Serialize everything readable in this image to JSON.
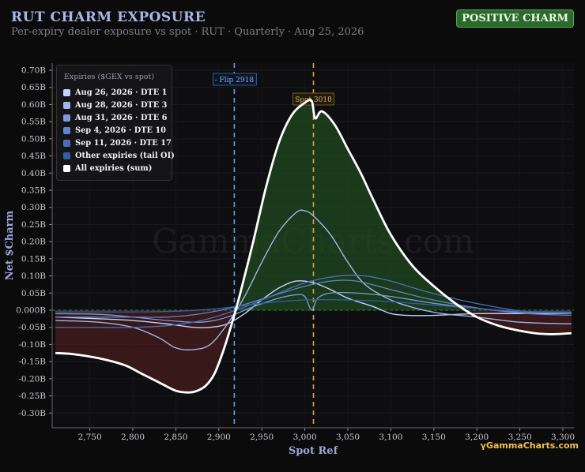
{
  "header": {
    "title": "RUT CHARM EXPOSURE",
    "subtitle": "Per-expiry dealer exposure vs spot · RUT · Quarterly · Aug 25, 2026",
    "badge": "POSITIVE CHARM"
  },
  "brand": "GammaCharts.com",
  "watermark": "GammaCharts.com",
  "colors": {
    "background": "#0b0b0c",
    "positive_fill": "#1f4a1f",
    "negative_fill": "#4a1c1c",
    "flip_line": "#5aa0e8",
    "spot_line": "#d9a44a",
    "badge_bg": "#2c6a2c"
  },
  "chart_data": {
    "type": "line",
    "xlabel": "Spot Ref",
    "ylabel": "Net $Charm",
    "xlim": [
      2710,
      3310
    ],
    "ylim": [
      -0.35,
      0.72
    ],
    "x_ticks": [
      2750,
      2800,
      2850,
      2900,
      2950,
      3000,
      3050,
      3100,
      3150,
      3200,
      3250,
      3300
    ],
    "x_tick_labels": [
      "2,750",
      "2,800",
      "2,850",
      "2,900",
      "2,950",
      "3,000",
      "3,050",
      "3,100",
      "3,150",
      "3,200",
      "3,250",
      "3,300"
    ],
    "y_ticks": [
      0.7,
      0.65,
      0.6,
      0.55,
      0.5,
      0.45,
      0.4,
      0.35,
      0.3,
      0.25,
      0.2,
      0.15,
      0.1,
      0.05,
      0,
      -0.05,
      -0.1,
      -0.15,
      -0.2,
      -0.25,
      -0.3
    ],
    "y_tick_labels": [
      "0.70B",
      "0.65B",
      "0.60B",
      "0.55B",
      "0.50B",
      "0.45B",
      "0.40B",
      "0.35B",
      "0.30B",
      "0.25B",
      "0.20B",
      "0.15B",
      "0.10B",
      "0.05B",
      "0.000B",
      "-0.05B",
      "-0.10B",
      "-0.15B",
      "-0.20B",
      "-0.25B",
      "-0.30B"
    ],
    "grid": true,
    "legend_title": "Expiries ($GEX vs spot)",
    "legend_position": "top-left",
    "annotations": {
      "flip": {
        "x": 2918,
        "label": "- Flip 2918"
      },
      "spot": {
        "x": 3010,
        "label": "Spot 3010"
      }
    },
    "series": [
      {
        "name": "Aug 26, 2026 · DTE 1",
        "color": "#c2d4ff",
        "width": 1.4,
        "x": [
          2710,
          2760,
          2800,
          2840,
          2870,
          2890,
          2910,
          2930,
          2950,
          2970,
          2990,
          3010,
          3030,
          3050,
          3080,
          3100,
          3120,
          3150,
          3200,
          3250,
          3310
        ],
        "y": [
          -0.02,
          -0.025,
          -0.03,
          -0.04,
          -0.05,
          -0.05,
          -0.04,
          -0.01,
          0.03,
          0.065,
          0.085,
          0.08,
          0.06,
          0.035,
          0.01,
          -0.01,
          -0.015,
          -0.015,
          -0.01,
          -0.01,
          -0.01
        ]
      },
      {
        "name": "Aug 28, 2026 · DTE 3",
        "color": "#9fb6ea",
        "width": 1.4,
        "x": [
          2710,
          2760,
          2800,
          2830,
          2850,
          2870,
          2890,
          2910,
          2930,
          2950,
          2970,
          2990,
          3000,
          3010,
          3030,
          3050,
          3070,
          3100,
          3130,
          3160,
          3200,
          3250,
          3310
        ],
        "y": [
          -0.03,
          -0.035,
          -0.05,
          -0.08,
          -0.11,
          -0.115,
          -0.1,
          -0.04,
          0.04,
          0.14,
          0.23,
          0.285,
          0.29,
          0.275,
          0.22,
          0.14,
          0.075,
          0.03,
          0.005,
          -0.01,
          -0.02,
          -0.035,
          -0.04
        ]
      },
      {
        "name": "Aug 31, 2026 · DTE 6",
        "color": "#7f9ad8",
        "width": 1.3,
        "x": [
          2710,
          2760,
          2800,
          2840,
          2880,
          2910,
          2940,
          2970,
          2990,
          3000,
          3008,
          3015,
          3030,
          3060,
          3100,
          3150,
          3200,
          3250,
          3310
        ],
        "y": [
          -0.01,
          -0.012,
          -0.02,
          -0.03,
          -0.035,
          -0.02,
          0.01,
          0.035,
          0.045,
          0.04,
          0.0,
          0.035,
          0.05,
          0.05,
          0.04,
          0.02,
          0.005,
          -0.005,
          -0.008
        ]
      },
      {
        "name": "Sep 4, 2026 · DTE 10",
        "color": "#6183c8",
        "width": 1.3,
        "x": [
          2710,
          2760,
          2800,
          2840,
          2880,
          2920,
          2960,
          3000,
          3030,
          3060,
          3100,
          3140,
          3180,
          3220,
          3260,
          3310
        ],
        "y": [
          -0.02,
          -0.02,
          -0.02,
          -0.02,
          -0.01,
          0.01,
          0.04,
          0.07,
          0.085,
          0.085,
          0.06,
          0.035,
          0.015,
          0.0,
          -0.01,
          -0.015
        ]
      },
      {
        "name": "Sep 11, 2026 · DTE 17",
        "color": "#4a6eb8",
        "width": 1.3,
        "x": [
          2710,
          2760,
          2800,
          2840,
          2880,
          2920,
          2960,
          3000,
          3040,
          3070,
          3100,
          3140,
          3180,
          3220,
          3260,
          3310
        ],
        "y": [
          -0.05,
          -0.05,
          -0.05,
          -0.045,
          -0.03,
          0.0,
          0.04,
          0.08,
          0.1,
          0.1,
          0.085,
          0.055,
          0.03,
          0.01,
          -0.005,
          -0.01
        ]
      },
      {
        "name": "Other expiries (tail OI)",
        "color": "#2f5fa8",
        "width": 1.3,
        "x": [
          2710,
          2760,
          2800,
          2850,
          2900,
          2950,
          3000,
          3050,
          3100,
          3150,
          3200,
          3250,
          3310
        ],
        "y": [
          -0.005,
          -0.005,
          -0.005,
          -0.003,
          0.005,
          0.02,
          0.03,
          0.03,
          0.025,
          0.015,
          0.005,
          -0.003,
          -0.005
        ]
      },
      {
        "name": "All expiries (sum)",
        "color": "#ffffff",
        "width": 2.8,
        "x": [
          2710,
          2730,
          2760,
          2790,
          2810,
          2830,
          2850,
          2865,
          2875,
          2885,
          2895,
          2905,
          2915,
          2925,
          2940,
          2955,
          2970,
          2985,
          3000,
          3008,
          3012,
          3020,
          3035,
          3050,
          3065,
          3080,
          3100,
          3125,
          3150,
          3175,
          3200,
          3225,
          3250,
          3270,
          3290,
          3310
        ],
        "y": [
          -0.125,
          -0.128,
          -0.14,
          -0.16,
          -0.185,
          -0.21,
          -0.235,
          -0.24,
          -0.235,
          -0.22,
          -0.185,
          -0.12,
          -0.04,
          0.05,
          0.2,
          0.36,
          0.49,
          0.57,
          0.605,
          0.61,
          0.56,
          0.58,
          0.54,
          0.47,
          0.4,
          0.32,
          0.22,
          0.13,
          0.07,
          0.02,
          -0.02,
          -0.045,
          -0.06,
          -0.068,
          -0.07,
          -0.067
        ]
      }
    ]
  }
}
